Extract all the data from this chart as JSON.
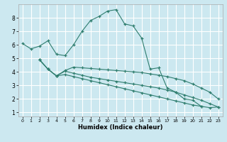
{
  "xlabel": "Humidex (Indice chaleur)",
  "bg_color": "#cce8f0",
  "grid_color": "#ffffff",
  "line_color": "#2e7d6e",
  "xlim": [
    -0.5,
    23.5
  ],
  "ylim": [
    0.7,
    9.0
  ],
  "xticks": [
    0,
    1,
    2,
    3,
    4,
    5,
    6,
    7,
    8,
    9,
    10,
    11,
    12,
    13,
    14,
    15,
    16,
    17,
    18,
    19,
    20,
    21,
    22,
    23
  ],
  "yticks": [
    1,
    2,
    3,
    4,
    5,
    6,
    7,
    8
  ],
  "main_x": [
    0,
    1,
    2,
    3,
    4,
    5,
    6,
    7,
    8,
    9,
    10,
    11,
    12,
    13,
    14,
    15,
    16,
    17,
    18,
    19,
    20,
    21
  ],
  "main_y": [
    6.1,
    5.7,
    5.9,
    6.3,
    5.3,
    5.2,
    6.0,
    7.0,
    7.8,
    8.1,
    8.5,
    8.6,
    7.55,
    7.4,
    6.5,
    4.2,
    4.3,
    2.8,
    2.5,
    2.0,
    1.9,
    1.45
  ],
  "desc_x": [
    2,
    3,
    4,
    5,
    6,
    7,
    8,
    9,
    10,
    11,
    12,
    13,
    14,
    15,
    16,
    17,
    18,
    19,
    20,
    21,
    22,
    23
  ],
  "desc1_y": [
    4.9,
    4.2,
    3.7,
    4.1,
    4.35,
    4.3,
    4.25,
    4.2,
    4.15,
    4.1,
    4.05,
    4.0,
    3.95,
    3.85,
    3.75,
    3.65,
    3.5,
    3.35,
    3.1,
    2.8,
    2.5,
    2.0
  ],
  "desc2_y": [
    4.9,
    4.2,
    3.7,
    4.05,
    3.9,
    3.75,
    3.6,
    3.5,
    3.4,
    3.3,
    3.2,
    3.1,
    3.0,
    2.9,
    2.8,
    2.65,
    2.5,
    2.3,
    2.1,
    1.9,
    1.65,
    1.4
  ],
  "desc3_y": [
    4.9,
    4.2,
    3.7,
    3.8,
    3.65,
    3.5,
    3.35,
    3.2,
    3.05,
    2.9,
    2.75,
    2.6,
    2.45,
    2.3,
    2.15,
    2.0,
    1.85,
    1.7,
    1.55,
    1.45,
    1.35,
    1.4
  ]
}
